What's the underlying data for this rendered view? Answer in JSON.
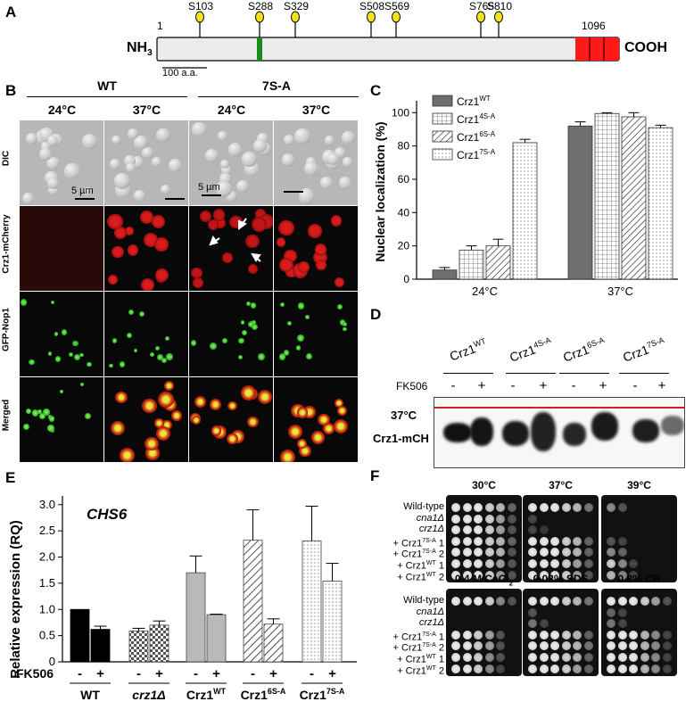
{
  "panelA": {
    "label": "A",
    "start": "1",
    "end": "1096",
    "n_term": "NH",
    "n_term_sub": "3",
    "c_term": "COOH",
    "scale": "100 a.a.",
    "sites": [
      "S103",
      "S288",
      "S329",
      "S508",
      "S569",
      "S765",
      "S810"
    ]
  },
  "panelB": {
    "label": "B",
    "groups": [
      "WT",
      "7S-A"
    ],
    "temps": [
      "24°C",
      "37°C",
      "24°C",
      "37°C"
    ],
    "rows": [
      "DIC",
      "Crz1-mCherry",
      "GFP-Nop1",
      "Merged"
    ],
    "scalebars": [
      "5 µm",
      "5 µm"
    ]
  },
  "panelC": {
    "label": "C",
    "legend": [
      "Crz1",
      "Crz1",
      "Crz1",
      "Crz1"
    ],
    "legend_sup": [
      "WT",
      "4S-A",
      "6S-A",
      "7S-A"
    ],
    "ylabel": "Nuclear localization (%)",
    "yticks": [
      "0",
      "20",
      "40",
      "60",
      "80",
      "100"
    ],
    "xcats": [
      "24°C",
      "37°C"
    ]
  },
  "panelD": {
    "label": "D",
    "strains": [
      "Crz1",
      "Crz1",
      "Crz1",
      "Crz1"
    ],
    "strains_sup": [
      "WT",
      "4S-A",
      "6S-A",
      "7S-A"
    ],
    "fk": "FK506",
    "signs": [
      "-",
      "+",
      "-",
      "+",
      "-",
      "+",
      "-",
      "+"
    ],
    "band_label_1": "37°C",
    "band_label_2": "Crz1-mCH"
  },
  "panelE": {
    "label": "E",
    "gene": "CHS6",
    "ylabel": "Relative expression (RQ)",
    "yticks": [
      "0",
      "0.5",
      "1.0",
      "1.5",
      "2.0",
      "2.5",
      "3.0"
    ],
    "fk": "FK506",
    "signs": [
      "-",
      "+",
      "-",
      "+",
      "-",
      "+",
      "-",
      "+",
      "-",
      "+"
    ],
    "groups": [
      "WT",
      "crz1Δ",
      "Crz1",
      "Crz1",
      "Crz1"
    ],
    "groups_sup": [
      "",
      "",
      "WT",
      "6S-A",
      "7S-A"
    ]
  },
  "panelF": {
    "label": "F",
    "top_conditions": [
      "30°C",
      "37°C",
      "39°C"
    ],
    "bottom_conditions": [
      "0.4 M CaCl",
      "0.02% SDS",
      "0.8% CR"
    ],
    "cacl_sub": "2",
    "strains": [
      "Wild-type",
      "cna1Δ",
      "crz1Δ",
      "+ Crz1",
      "+ Crz1",
      "+ Crz1",
      "+ Crz1"
    ],
    "strains_sup": [
      "",
      "",
      "",
      "7S-A",
      "7S-A",
      "WT",
      "WT"
    ],
    "strains_suffix": [
      "",
      "",
      "",
      "1",
      "2",
      "1",
      "2"
    ]
  },
  "chart_data": [
    {
      "type": "bar",
      "panel": "C",
      "title": "",
      "categories": [
        "24°C",
        "37°C"
      ],
      "ylabel": "Nuclear localization (%)",
      "ylim": [
        0,
        105
      ],
      "series": [
        {
          "name": "Crz1WT",
          "values": [
            5.5,
            92
          ],
          "errors": [
            1.5,
            2.5
          ],
          "color": "#707070"
        },
        {
          "name": "Crz14S-A",
          "values": [
            17.5,
            99.5
          ],
          "errors": [
            2.5,
            0.5
          ],
          "color": "#d8d8d8"
        },
        {
          "name": "Crz16S-A",
          "values": [
            20,
            97.5
          ],
          "errors": [
            4,
            2.5
          ],
          "color": "#ffffff"
        },
        {
          "name": "Crz17S-A",
          "values": [
            82,
            91
          ],
          "errors": [
            2,
            1.5
          ],
          "color": "#f2f2f2"
        }
      ]
    },
    {
      "type": "bar",
      "panel": "E",
      "title": "CHS6",
      "categories": [
        "WT",
        "crz1Δ",
        "Crz1WT",
        "Crz16S-A",
        "Crz17S-A"
      ],
      "ylabel": "Relative expression (RQ)",
      "ylim": [
        0,
        3.2
      ],
      "series": [
        {
          "name": "-",
          "values": [
            1.0,
            0.59,
            1.7,
            2.32,
            2.31
          ],
          "errors": [
            0,
            0.05,
            0.32,
            0.58,
            0.66
          ]
        },
        {
          "name": "+",
          "values": [
            0.62,
            0.7,
            0.9,
            0.72,
            1.54
          ],
          "errors": [
            0.06,
            0.08,
            0.01,
            0.1,
            0.34
          ]
        }
      ],
      "colors": [
        "#000000",
        "#9a9a9a",
        "#b9b9b9",
        "#ffffff",
        "#ffffff"
      ]
    }
  ]
}
